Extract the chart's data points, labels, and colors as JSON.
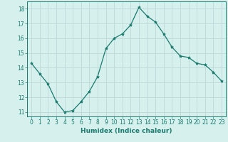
{
  "x": [
    0,
    1,
    2,
    3,
    4,
    5,
    6,
    7,
    8,
    9,
    10,
    11,
    12,
    13,
    14,
    15,
    16,
    17,
    18,
    19,
    20,
    21,
    22,
    23
  ],
  "y": [
    14.3,
    13.6,
    12.9,
    11.7,
    11.0,
    11.1,
    11.7,
    12.4,
    13.4,
    15.3,
    16.0,
    16.3,
    16.9,
    18.1,
    17.5,
    17.1,
    16.3,
    15.4,
    14.8,
    14.7,
    14.3,
    14.2,
    13.7,
    13.1
  ],
  "line_color": "#1a7a6e",
  "marker": "*",
  "marker_size": 3,
  "background_color": "#d6f0ee",
  "grid_color": "#c0dbd9",
  "xlabel": "Humidex (Indice chaleur)",
  "xlim": [
    -0.5,
    23.5
  ],
  "ylim": [
    10.7,
    18.5
  ],
  "yticks": [
    11,
    12,
    13,
    14,
    15,
    16,
    17,
    18
  ],
  "xticks": [
    0,
    1,
    2,
    3,
    4,
    5,
    6,
    7,
    8,
    9,
    10,
    11,
    12,
    13,
    14,
    15,
    16,
    17,
    18,
    19,
    20,
    21,
    22,
    23
  ],
  "tick_color": "#1a7a6e",
  "label_color": "#1a7a6e",
  "spine_color": "#1a7a6e",
  "xlabel_fontsize": 6.5,
  "tick_fontsize": 5.5
}
